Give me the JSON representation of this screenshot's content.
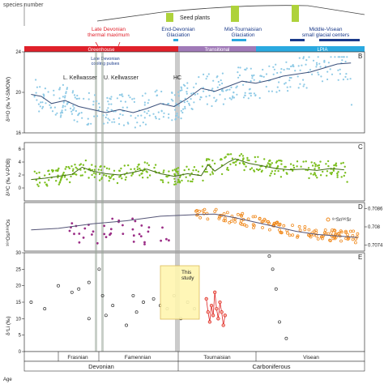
{
  "top_strip": {
    "ylabel": "species number",
    "seed_label": "Seed plants"
  },
  "events": {
    "late_devonian_thermal": "Late Devonian\nthermal maximum",
    "end_devonian_glaciation": "End-Devonian\nGlaciation",
    "mid_tournaisian_glaciation": "Mid-Tournaisian\nGlaciation",
    "middle_visean": "Middle-Visean\nsmall glacial centers",
    "cooling_pulses": "Late Devonian\ncooling pulses",
    "l_kellwasser": "L. Kellwasser",
    "u_kellwasser": "U. Kellwasser",
    "hc": "HC"
  },
  "climate_bar": {
    "greenhouse": "Greenhouse",
    "transitional": "Transitional",
    "lpia": "LPIA",
    "colors": {
      "greenhouse": "#e0202a",
      "transitional": "#a07ab8",
      "lpia": "#2aa9e0"
    }
  },
  "panel_letters": [
    "B",
    "C",
    "D",
    "E"
  ],
  "study_box_label": "This\nstudy",
  "legend_sr": "⁸⁷Sr/⁸⁶Sr",
  "stages": [
    "Frasnian",
    "Famennian",
    "Tournaisian",
    "Visean"
  ],
  "periods": [
    "Devonian",
    "Carboniferous"
  ],
  "age_label": "Age",
  "chart_data": [
    {
      "panel": "B",
      "type": "scatter",
      "ylabel": "δ¹⁸O (‰ V-SMOW)",
      "yticks": [
        16,
        20,
        24
      ],
      "ylim": [
        16,
        24
      ],
      "series_color": "#8ecae6",
      "trend": [
        [
          0.02,
          19.8
        ],
        [
          0.05,
          19.6
        ],
        [
          0.08,
          18.9
        ],
        [
          0.12,
          19.2
        ],
        [
          0.16,
          18.6
        ],
        [
          0.2,
          18.3
        ],
        [
          0.24,
          18.0
        ],
        [
          0.28,
          18.3
        ],
        [
          0.32,
          18.0
        ],
        [
          0.36,
          18.4
        ],
        [
          0.4,
          18.9
        ],
        [
          0.44,
          18.6
        ],
        [
          0.48,
          19.4
        ],
        [
          0.52,
          20.4
        ],
        [
          0.56,
          20.1
        ],
        [
          0.6,
          20.6
        ],
        [
          0.64,
          21.1
        ],
        [
          0.68,
          20.9
        ],
        [
          0.72,
          21.2
        ],
        [
          0.76,
          21.6
        ],
        [
          0.8,
          21.8
        ],
        [
          0.84,
          22.0
        ],
        [
          0.88,
          22.4
        ],
        [
          0.92,
          22.8
        ],
        [
          0.96,
          22.9
        ]
      ]
    },
    {
      "panel": "C",
      "type": "scatter",
      "ylabel": "δ¹³C (‰ V-PDB)",
      "yticks": [
        0,
        2,
        4,
        6
      ],
      "ylim": [
        -2,
        7
      ],
      "series_color": "#7cbf1e",
      "trend": [
        [
          0.02,
          1.3
        ],
        [
          0.06,
          1.5
        ],
        [
          0.1,
          1.8
        ],
        [
          0.14,
          2.1
        ],
        [
          0.17,
          3.2
        ],
        [
          0.2,
          2.6
        ],
        [
          0.24,
          2.2
        ],
        [
          0.28,
          2.0
        ],
        [
          0.32,
          2.4
        ],
        [
          0.36,
          2.9
        ],
        [
          0.4,
          2.2
        ],
        [
          0.44,
          1.8
        ],
        [
          0.48,
          2.2
        ],
        [
          0.52,
          1.9
        ],
        [
          0.54,
          3.6
        ],
        [
          0.56,
          2.6
        ],
        [
          0.6,
          4.0
        ],
        [
          0.62,
          4.5
        ],
        [
          0.66,
          3.8
        ],
        [
          0.7,
          3.4
        ],
        [
          0.74,
          3.0
        ],
        [
          0.78,
          2.8
        ],
        [
          0.82,
          2.9
        ],
        [
          0.86,
          2.7
        ],
        [
          0.9,
          3.0
        ],
        [
          0.94,
          2.8
        ]
      ]
    },
    {
      "panel": "D",
      "type": "line",
      "ylabel": "¹⁸⁷Os/¹⁸⁸Os",
      "y2label": "⁸⁷Sr/⁸⁶Sr",
      "y2ticks": [
        0.7074,
        0.708,
        0.7086
      ],
      "os_color": "#9b2d86",
      "sr_color": "#f08a1e",
      "sr_trend": [
        [
          0.02,
          0.7079
        ],
        [
          0.1,
          0.70795
        ],
        [
          0.2,
          0.7081
        ],
        [
          0.3,
          0.7082
        ],
        [
          0.4,
          0.70835
        ],
        [
          0.5,
          0.7084
        ],
        [
          0.56,
          0.70842
        ],
        [
          0.62,
          0.7083
        ],
        [
          0.68,
          0.70815
        ],
        [
          0.74,
          0.708
        ],
        [
          0.8,
          0.70785
        ],
        [
          0.86,
          0.70775
        ],
        [
          0.92,
          0.7077
        ],
        [
          0.98,
          0.70765
        ]
      ]
    },
    {
      "panel": "E",
      "type": "scatter",
      "ylabel": "δ⁷Li (‰)",
      "yticks": [
        0,
        5,
        10,
        15,
        20,
        25,
        30
      ],
      "ylim": [
        0,
        30
      ],
      "points": [
        [
          0.02,
          15
        ],
        [
          0.06,
          13
        ],
        [
          0.1,
          20
        ],
        [
          0.14,
          18
        ],
        [
          0.16,
          19
        ],
        [
          0.19,
          21
        ],
        [
          0.19,
          10
        ],
        [
          0.22,
          25
        ],
        [
          0.23,
          17
        ],
        [
          0.24,
          11
        ],
        [
          0.26,
          14
        ],
        [
          0.3,
          8
        ],
        [
          0.32,
          17
        ],
        [
          0.33,
          12
        ],
        [
          0.35,
          15
        ],
        [
          0.38,
          16
        ],
        [
          0.4,
          14
        ],
        [
          0.42,
          13
        ],
        [
          0.44,
          17
        ],
        [
          0.46,
          10
        ],
        [
          0.48,
          15
        ],
        [
          0.5,
          13
        ],
        [
          0.72,
          29
        ],
        [
          0.73,
          25
        ],
        [
          0.74,
          19
        ],
        [
          0.75,
          9
        ],
        [
          0.77,
          4
        ]
      ],
      "study_points": [
        [
          0.535,
          16
        ],
        [
          0.54,
          12
        ],
        [
          0.545,
          9
        ],
        [
          0.55,
          14
        ],
        [
          0.555,
          11
        ],
        [
          0.56,
          18
        ],
        [
          0.565,
          13
        ],
        [
          0.57,
          10
        ],
        [
          0.575,
          15
        ],
        [
          0.58,
          12
        ],
        [
          0.585,
          8
        ],
        [
          0.59,
          11
        ]
      ]
    }
  ]
}
